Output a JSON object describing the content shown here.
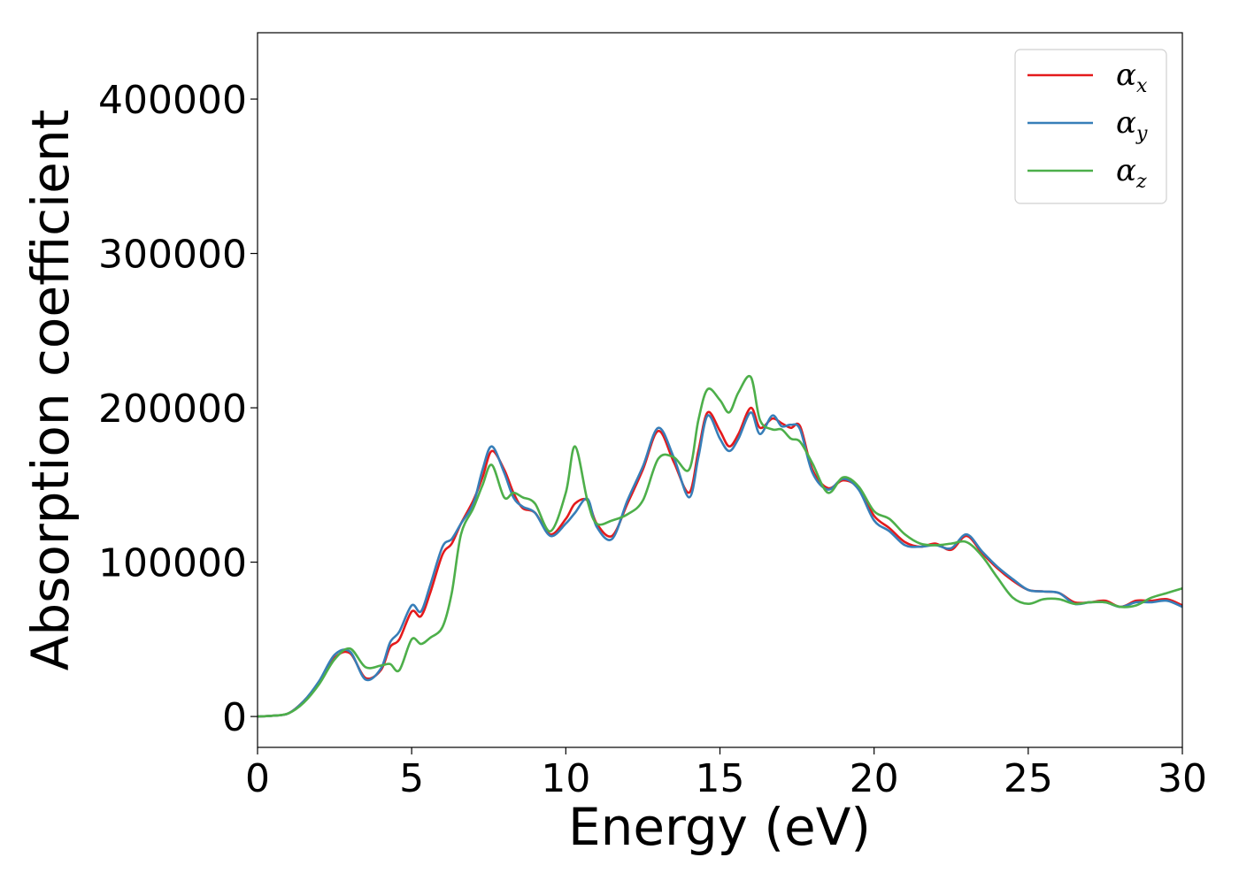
{
  "chart_data": {
    "type": "line",
    "title": "",
    "xlabel": "Energy (eV)",
    "ylabel": "Absorption coefficient",
    "xlim": [
      0,
      30
    ],
    "ylim": [
      -20000,
      443000
    ],
    "xticks": [
      0,
      5,
      10,
      15,
      20,
      25,
      30
    ],
    "yticks": [
      0,
      100000,
      200000,
      300000,
      400000
    ],
    "grid": false,
    "legend_position": "top-right",
    "series": [
      {
        "symbol": "α",
        "subscript": "x",
        "color": "#e41a1c",
        "x": [
          0,
          0.5,
          1.0,
          1.5,
          2.0,
          2.5,
          3.0,
          3.5,
          4.0,
          4.3,
          4.6,
          5.0,
          5.3,
          5.6,
          6.0,
          6.3,
          6.6,
          7.0,
          7.3,
          7.6,
          8.0,
          8.3,
          8.6,
          9.0,
          9.5,
          10.0,
          10.3,
          10.7,
          11.0,
          11.5,
          12.0,
          12.5,
          13.0,
          13.5,
          14.0,
          14.3,
          14.6,
          15.0,
          15.3,
          15.6,
          16.0,
          16.3,
          16.7,
          17.0,
          17.3,
          17.6,
          18.0,
          18.5,
          19.0,
          19.5,
          20.0,
          20.5,
          21.0,
          21.5,
          22.0,
          22.5,
          23.0,
          23.5,
          24.0,
          24.5,
          25.0,
          25.5,
          26.0,
          26.5,
          27.0,
          27.5,
          28.0,
          28.5,
          29.0,
          29.5,
          30.0
        ],
        "values": [
          0,
          500,
          2000,
          10000,
          22000,
          38000,
          41000,
          25000,
          30000,
          45000,
          50000,
          68000,
          65000,
          80000,
          105000,
          112000,
          125000,
          140000,
          155000,
          172000,
          160000,
          145000,
          135000,
          132000,
          118000,
          128000,
          138000,
          140000,
          125000,
          117000,
          138000,
          160000,
          185000,
          165000,
          145000,
          172000,
          197000,
          185000,
          175000,
          183000,
          200000,
          187000,
          193000,
          190000,
          187000,
          188000,
          160000,
          148000,
          153000,
          148000,
          130000,
          122000,
          113000,
          110000,
          112000,
          108000,
          117000,
          106000,
          96000,
          88000,
          82000,
          81000,
          80000,
          74000,
          74000,
          75000,
          71000,
          75000,
          75000,
          76000,
          72000
        ]
      },
      {
        "symbol": "α",
        "subscript": "y",
        "color": "#377eb8",
        "x": [
          0,
          0.5,
          1.0,
          1.5,
          2.0,
          2.5,
          3.0,
          3.5,
          4.0,
          4.3,
          4.6,
          5.0,
          5.3,
          5.6,
          6.0,
          6.3,
          6.6,
          7.0,
          7.3,
          7.6,
          8.0,
          8.3,
          8.6,
          9.0,
          9.5,
          10.0,
          10.3,
          10.7,
          11.0,
          11.5,
          12.0,
          12.5,
          13.0,
          13.5,
          14.0,
          14.3,
          14.6,
          15.0,
          15.3,
          15.6,
          16.0,
          16.3,
          16.7,
          17.0,
          17.3,
          17.6,
          18.0,
          18.5,
          19.0,
          19.5,
          20.0,
          20.5,
          21.0,
          21.5,
          22.0,
          22.5,
          23.0,
          23.5,
          24.0,
          24.5,
          25.0,
          25.5,
          26.0,
          26.5,
          27.0,
          27.5,
          28.0,
          28.5,
          29.0,
          29.5,
          30.0
        ],
        "values": [
          0,
          500,
          2000,
          10000,
          23000,
          40000,
          42000,
          24000,
          31000,
          48000,
          55000,
          72000,
          68000,
          85000,
          110000,
          115000,
          125000,
          138000,
          160000,
          175000,
          158000,
          142000,
          136000,
          132000,
          117000,
          125000,
          132000,
          141000,
          123000,
          115000,
          140000,
          162000,
          187000,
          168000,
          142000,
          168000,
          195000,
          180000,
          172000,
          180000,
          197000,
          183000,
          195000,
          188000,
          189000,
          186000,
          158000,
          147000,
          154000,
          147000,
          127000,
          120000,
          111000,
          110000,
          111000,
          109000,
          118000,
          107000,
          97000,
          89000,
          82000,
          81000,
          80000,
          73000,
          74000,
          74000,
          71000,
          74000,
          74000,
          75000,
          71000
        ]
      },
      {
        "symbol": "α",
        "subscript": "z",
        "color": "#4daf4a",
        "x": [
          0,
          0.5,
          1.0,
          1.5,
          2.0,
          2.5,
          3.0,
          3.5,
          4.0,
          4.3,
          4.6,
          5.0,
          5.3,
          5.6,
          6.0,
          6.3,
          6.6,
          7.0,
          7.3,
          7.6,
          8.0,
          8.3,
          8.6,
          9.0,
          9.5,
          10.0,
          10.3,
          10.7,
          11.0,
          11.5,
          12.0,
          12.5,
          13.0,
          13.5,
          14.0,
          14.3,
          14.6,
          15.0,
          15.3,
          15.6,
          16.0,
          16.3,
          16.7,
          17.0,
          17.3,
          17.6,
          18.0,
          18.5,
          19.0,
          19.5,
          20.0,
          20.5,
          21.0,
          21.5,
          22.0,
          22.5,
          23.0,
          23.5,
          24.0,
          24.5,
          25.0,
          25.5,
          26.0,
          26.5,
          27.0,
          27.5,
          28.0,
          28.5,
          29.0,
          29.5,
          30.0
        ],
        "values": [
          0,
          500,
          2000,
          9000,
          21000,
          37000,
          44000,
          32000,
          33000,
          34000,
          30000,
          50000,
          47000,
          51000,
          58000,
          80000,
          118000,
          135000,
          150000,
          163000,
          142000,
          145000,
          142000,
          138000,
          120000,
          145000,
          175000,
          140000,
          125000,
          127000,
          131000,
          140000,
          167000,
          168000,
          160000,
          192000,
          212000,
          205000,
          197000,
          210000,
          220000,
          192000,
          186000,
          186000,
          180000,
          178000,
          164000,
          145000,
          155000,
          149000,
          133000,
          128000,
          118000,
          112000,
          111000,
          112000,
          113000,
          104000,
          90000,
          77000,
          73000,
          76000,
          76000,
          73000,
          74000,
          74000,
          71000,
          72000,
          77000,
          80000,
          83000
        ]
      }
    ]
  }
}
